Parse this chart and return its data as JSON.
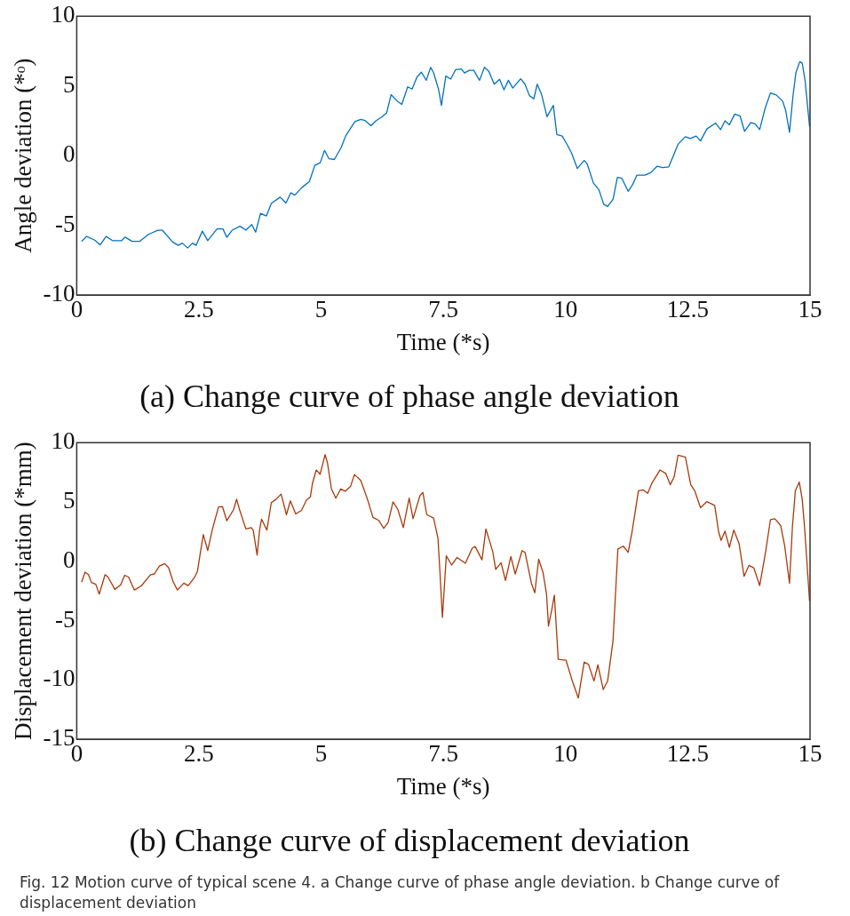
{
  "chart_data": [
    {
      "type": "line",
      "title": "(a) Change curve of phase angle deviation",
      "xlabel": "Time (*s)",
      "ylabel": "Angle deviation (*ᵒ)",
      "xlim": [
        0,
        15
      ],
      "ylim": [
        -10,
        10
      ],
      "xticks": [
        0,
        2.5,
        5,
        7.5,
        10,
        12.5,
        15
      ],
      "yticks": [
        -10,
        -5,
        0,
        5,
        10
      ],
      "x": [
        0.1,
        0.2,
        0.36,
        0.48,
        0.6,
        0.73,
        0.92,
        0.99,
        1.13,
        1.29,
        1.47,
        1.66,
        1.75,
        1.97,
        2.08,
        2.16,
        2.27,
        2.37,
        2.44,
        2.57,
        2.68,
        2.87,
        2.99,
        3.07,
        3.18,
        3.34,
        3.46,
        3.58,
        3.66,
        3.76,
        3.88,
        3.98,
        4.16,
        4.28,
        4.38,
        4.46,
        4.61,
        4.76,
        4.87,
        4.98,
        5.07,
        5.16,
        5.27,
        5.41,
        5.5,
        5.69,
        5.81,
        5.9,
        6.02,
        6.12,
        6.25,
        6.34,
        6.43,
        6.56,
        6.65,
        6.77,
        6.86,
        6.96,
        7.05,
        7.15,
        7.24,
        7.3,
        7.4,
        7.46,
        7.55,
        7.65,
        7.75,
        7.87,
        7.93,
        8.03,
        8.12,
        8.24,
        8.34,
        8.43,
        8.54,
        8.65,
        8.74,
        8.83,
        8.92,
        9.08,
        9.17,
        9.26,
        9.35,
        9.42,
        9.51,
        9.62,
        9.75,
        9.82,
        9.93,
        10.04,
        10.13,
        10.24,
        10.38,
        10.44,
        10.57,
        10.68,
        10.78,
        10.86,
        10.97,
        11.06,
        11.15,
        11.28,
        11.37,
        11.46,
        11.62,
        11.74,
        11.87,
        11.99,
        12.11,
        12.3,
        12.45,
        12.55,
        12.67,
        12.76,
        12.89,
        13.07,
        13.17,
        13.26,
        13.35,
        13.46,
        13.57,
        13.66,
        13.79,
        13.88,
        13.97,
        14.08,
        14.19,
        14.31,
        14.44,
        14.5,
        14.58,
        14.65,
        14.71,
        14.79,
        14.84,
        14.9,
        14.99
      ],
      "series": [
        {
          "color": "#0072bd",
          "values": [
            -6.16,
            -5.8,
            -6.05,
            -6.4,
            -5.8,
            -6.1,
            -6.1,
            -5.85,
            -6.15,
            -6.15,
            -5.65,
            -5.35,
            -5.35,
            -6.23,
            -6.44,
            -6.28,
            -6.63,
            -6.28,
            -6.44,
            -5.42,
            -6.1,
            -5.26,
            -5.26,
            -5.86,
            -5.35,
            -5.07,
            -5.35,
            -4.95,
            -5.49,
            -4.14,
            -4.33,
            -3.44,
            -2.98,
            -3.4,
            -2.67,
            -2.84,
            -2.28,
            -1.86,
            -0.7,
            -0.51,
            0.37,
            -0.23,
            -0.28,
            0.58,
            1.4,
            2.44,
            2.6,
            2.51,
            2.14,
            2.49,
            2.79,
            3.07,
            4.37,
            3.9,
            3.67,
            4.93,
            4.77,
            5.63,
            5.98,
            5.4,
            6.33,
            5.93,
            4.77,
            3.6,
            5.7,
            5.49,
            6.16,
            6.21,
            5.93,
            6.12,
            6.12,
            5.4,
            6.33,
            6.05,
            5.12,
            5.47,
            4.72,
            5.4,
            4.84,
            5.51,
            5.12,
            4.3,
            4.07,
            5.12,
            4.37,
            2.79,
            3.6,
            1.51,
            1.4,
            0.74,
            0.12,
            -0.93,
            -0.35,
            -0.58,
            -1.98,
            -2.44,
            -3.49,
            -3.65,
            -3.14,
            -1.56,
            -1.63,
            -2.56,
            -2.09,
            -1.4,
            -1.4,
            -1.23,
            -0.77,
            -0.86,
            -0.81,
            0.81,
            1.35,
            1.23,
            1.4,
            1.05,
            1.91,
            2.33,
            1.86,
            2.49,
            2.21,
            2.98,
            2.84,
            1.74,
            2.37,
            2.26,
            1.86,
            3.37,
            4.49,
            4.35,
            3.9,
            3.26,
            1.67,
            4.23,
            5.93,
            6.74,
            6.63,
            5.35,
            2.09
          ]
        }
      ]
    },
    {
      "type": "line",
      "title": "(b) Change curve of displacement deviation",
      "xlabel": "Time (*s)",
      "ylabel": "Displacement deviation (*mm)",
      "xlim": [
        0,
        15
      ],
      "ylim": [
        -15,
        10
      ],
      "xticks": [
        0,
        2.5,
        5,
        7.5,
        10,
        12.5,
        15
      ],
      "yticks": [
        -15,
        -10,
        -5,
        0,
        5,
        10
      ],
      "x": [
        0.1,
        0.17,
        0.24,
        0.3,
        0.39,
        0.46,
        0.58,
        0.64,
        0.78,
        0.9,
        0.98,
        1.06,
        1.18,
        1.32,
        1.51,
        1.59,
        1.69,
        1.8,
        1.88,
        1.97,
        2.06,
        2.19,
        2.28,
        2.4,
        2.47,
        2.53,
        2.59,
        2.68,
        2.78,
        2.9,
        2.98,
        3.07,
        3.21,
        3.27,
        3.33,
        3.46,
        3.57,
        3.61,
        3.69,
        3.74,
        3.78,
        3.89,
        3.98,
        4.08,
        4.18,
        4.29,
        4.37,
        4.48,
        4.6,
        4.7,
        4.78,
        4.82,
        4.9,
        4.98,
        5.08,
        5.13,
        5.21,
        5.3,
        5.4,
        5.49,
        5.6,
        5.68,
        5.81,
        5.94,
        6.06,
        6.18,
        6.28,
        6.37,
        6.47,
        6.57,
        6.68,
        6.74,
        6.8,
        6.88,
        7.02,
        7.08,
        7.16,
        7.3,
        7.39,
        7.43,
        7.48,
        7.56,
        7.67,
        7.78,
        7.95,
        8.09,
        8.15,
        8.29,
        8.37,
        8.51,
        8.57,
        8.68,
        8.77,
        8.88,
        8.97,
        9.11,
        9.17,
        9.3,
        9.37,
        9.45,
        9.54,
        9.61,
        9.65,
        9.72,
        9.77,
        9.85,
        10.01,
        10.13,
        10.26,
        10.38,
        10.47,
        10.58,
        10.66,
        10.77,
        10.86,
        10.97,
        11.07,
        11.18,
        11.28,
        11.36,
        11.49,
        11.59,
        11.68,
        11.77,
        11.93,
        12.05,
        12.14,
        12.22,
        12.3,
        12.45,
        12.56,
        12.64,
        12.76,
        12.89,
        13.05,
        13.13,
        13.18,
        13.26,
        13.35,
        13.44,
        13.55,
        13.65,
        13.75,
        13.85,
        13.97,
        14.09,
        14.19,
        14.28,
        14.4,
        14.48,
        14.58,
        14.64,
        14.7,
        14.78,
        14.84,
        14.89,
        14.99
      ],
      "series": [
        {
          "color": "#a83a0c",
          "values": [
            -1.76,
            -0.92,
            -1.13,
            -1.79,
            -1.94,
            -2.77,
            -1.13,
            -1.33,
            -2.37,
            -1.99,
            -1.18,
            -1.33,
            -2.43,
            -2.08,
            -1.13,
            -1.07,
            -0.4,
            -0.2,
            -0.55,
            -1.71,
            -2.43,
            -1.85,
            -2.05,
            -1.42,
            -0.84,
            0.75,
            2.25,
            0.9,
            2.77,
            4.57,
            4.62,
            3.41,
            4.36,
            5.23,
            4.36,
            2.72,
            2.83,
            2.63,
            0.52,
            2.63,
            3.55,
            2.63,
            4.94,
            5.23,
            5.66,
            3.93,
            5.09,
            3.99,
            4.31,
            5.17,
            5.43,
            6.53,
            7.69,
            7.34,
            8.99,
            8.27,
            6.1,
            5.32,
            6.1,
            5.9,
            6.3,
            7.31,
            6.82,
            5.32,
            3.7,
            3.44,
            2.77,
            3.27,
            5.0,
            4.36,
            2.83,
            4.08,
            5.32,
            3.58,
            5.52,
            5.81,
            3.93,
            3.64,
            1.91,
            -0.92,
            -4.74,
            0.46,
            -0.32,
            0.32,
            -0.17,
            1.1,
            1.24,
            0.12,
            2.72,
            0.81,
            -0.69,
            -0.12,
            -1.62,
            0.4,
            -1.07,
            0.9,
            0.75,
            -1.85,
            -2.66,
            0.17,
            -0.98,
            -2.77,
            -5.46,
            -4.02,
            -2.86,
            -8.27,
            -8.35,
            -10.0,
            -11.53,
            -8.5,
            -8.7,
            -10.09,
            -8.73,
            -10.81,
            -10.09,
            -6.71,
            1.04,
            1.27,
            0.75,
            2.49,
            5.95,
            6.01,
            5.72,
            6.62,
            7.69,
            7.4,
            6.45,
            7.11,
            8.93,
            8.79,
            6.45,
            5.95,
            4.51,
            5.03,
            4.71,
            2.49,
            1.76,
            2.54,
            1.18,
            2.63,
            1.47,
            -1.27,
            -0.35,
            -0.55,
            -2.05,
            0.75,
            3.5,
            3.58,
            3.01,
            1.33,
            -1.85,
            2.92,
            5.95,
            6.68,
            5.23,
            2.77,
            -3.35
          ]
        }
      ],
      "annotations": [
        "Fig. 12 Motion curve of typical scene 4. a Change curve of phase angle deviation. b Change curve of displacement deviation"
      ]
    }
  ]
}
